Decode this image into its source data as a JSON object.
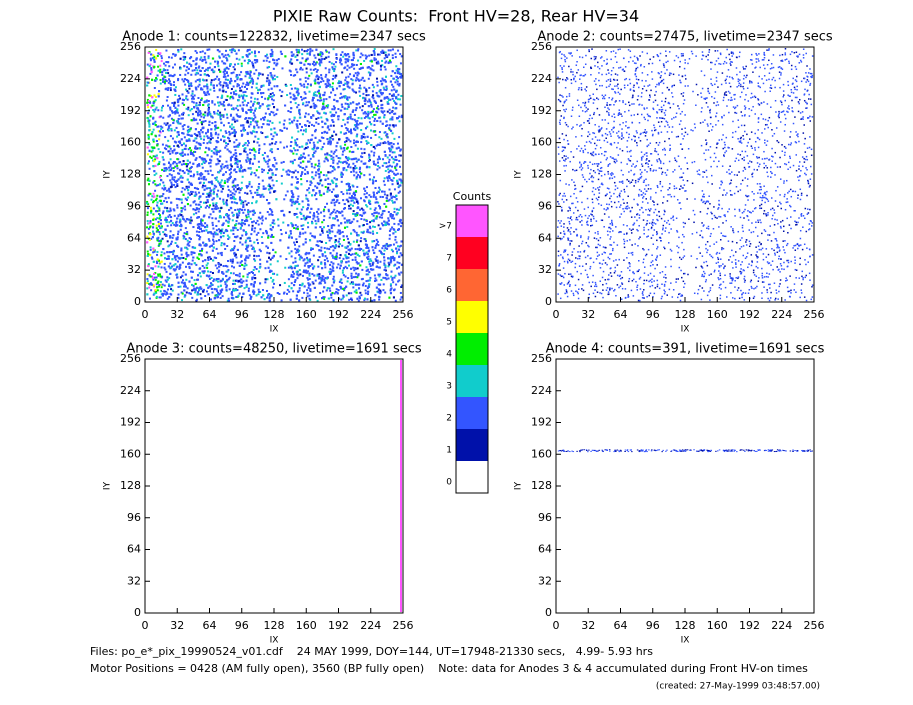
{
  "title": "PIXIE Raw Counts:  Front HV=28, Rear HV=34",
  "chart_data": [
    {
      "type": "heatmap",
      "title": "Anode 1: counts=122832, livetime=2347 secs",
      "xlabel": "IX",
      "ylabel": "IY",
      "xlim": [
        0,
        256
      ],
      "ylim": [
        0,
        256
      ],
      "xticks": [
        0,
        32,
        64,
        96,
        128,
        160,
        192,
        224,
        256
      ],
      "yticks": [
        0,
        32,
        64,
        96,
        128,
        160,
        192,
        224,
        256
      ]
    },
    {
      "type": "heatmap",
      "title": "Anode 2: counts=27475, livetime=2347 secs",
      "xlabel": "IX",
      "ylabel": "IY",
      "xlim": [
        0,
        256
      ],
      "ylim": [
        0,
        256
      ],
      "xticks": [
        0,
        32,
        64,
        96,
        128,
        160,
        192,
        224,
        256
      ],
      "yticks": [
        0,
        32,
        64,
        96,
        128,
        160,
        192,
        224,
        256
      ]
    },
    {
      "type": "heatmap",
      "title": "Anode 3: counts=48250, livetime=1691 secs",
      "xlabel": "IX",
      "ylabel": "IY",
      "xlim": [
        0,
        256
      ],
      "ylim": [
        0,
        256
      ],
      "xticks": [
        0,
        32,
        64,
        96,
        128,
        160,
        192,
        224,
        256
      ],
      "yticks": [
        0,
        32,
        64,
        96,
        128,
        160,
        192,
        224,
        256
      ]
    },
    {
      "type": "heatmap",
      "title": "Anode 4: counts=391, livetime=1691 secs",
      "xlabel": "IX",
      "ylabel": "IY",
      "xlim": [
        0,
        256
      ],
      "ylim": [
        0,
        256
      ],
      "xticks": [
        0,
        32,
        64,
        96,
        128,
        160,
        192,
        224,
        256
      ],
      "yticks": [
        0,
        32,
        64,
        96,
        128,
        160,
        192,
        224,
        256
      ]
    }
  ],
  "colorbar": {
    "title": "Counts",
    "levels": [
      0,
      1,
      2,
      3,
      4,
      5,
      6,
      7,
      ">7"
    ],
    "colors": [
      "#ffffff",
      "#0011aa",
      "#3355ff",
      "#11cccc",
      "#00ee00",
      "#ffff00",
      "#ff6633",
      "#ff0020",
      "#ff55ff"
    ]
  },
  "footer": {
    "files": "Files: po_e*_pix_19990524_v01.cdf    24 MAY 1999, DOY=144, UT=17948-21330 secs,   4.99- 5.93 hrs",
    "motor": "Motor Positions = 0428 (AM fully open), 3560 (BP fully open)    Note: data for Anodes 3 & 4 accumulated during Front HV-on times",
    "created": "(created: 27-May-1999 03:48:57.00)"
  }
}
